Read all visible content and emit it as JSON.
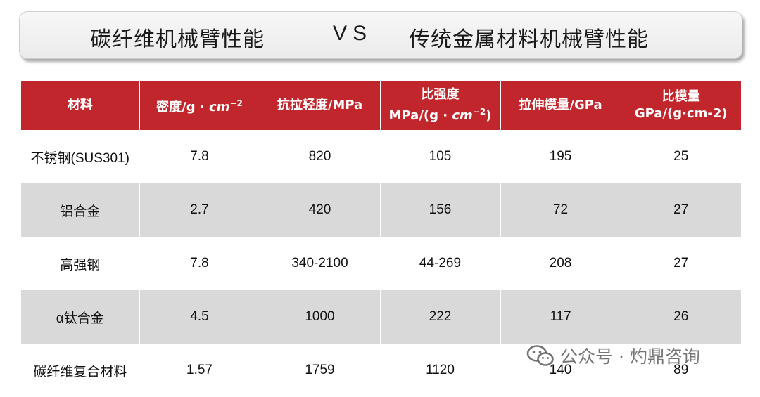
{
  "title": {
    "left": "碳纤维机械臂性能",
    "vs": "VS",
    "right": "传统金属材料机械臂性能"
  },
  "table": {
    "headers": [
      {
        "line1": "材料",
        "line2": ""
      },
      {
        "line1": "密度/g · ",
        "unit": "cm",
        "exp": "−2"
      },
      {
        "line1": "抗拉轻度/MPa",
        "line2": ""
      },
      {
        "line1": "比强度",
        "line2": "MPa/(g · ",
        "unit": "cm",
        "exp": "−2",
        "close": ")"
      },
      {
        "line1": "拉伸模量/GPa",
        "line2": ""
      },
      {
        "line1": "比模量",
        "line2": "GPa/(g·cm-2)"
      }
    ],
    "rows": [
      [
        "不锈钢(SUS301)",
        "7.8",
        "820",
        "105",
        "195",
        "25"
      ],
      [
        "铝合金",
        "2.7",
        "420",
        "156",
        "72",
        "27"
      ],
      [
        "高强钢",
        "7.8",
        "340-2100",
        "44-269",
        "208",
        "27"
      ],
      [
        "α钛合金",
        "4.5",
        "1000",
        "222",
        "117",
        "26"
      ],
      [
        "碳纤维复合材料",
        "1.57",
        "1759",
        "1120",
        "140",
        "89"
      ]
    ]
  },
  "watermark": {
    "icon": "wechat-icon",
    "text": "公众号 · 灼鼎咨询"
  }
}
